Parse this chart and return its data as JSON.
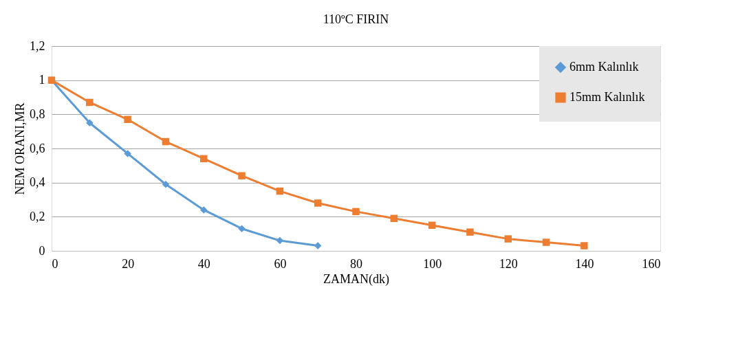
{
  "chart_data": {
    "type": "line",
    "title": "110ºC  FIRIN",
    "xlabel": "ZAMAN(dk)",
    "ylabel": "NEM ORANI,MR",
    "xlim": [
      0,
      160
    ],
    "xticks": [
      0,
      20,
      40,
      60,
      80,
      100,
      120,
      140,
      160
    ],
    "ylim": [
      0,
      1.2
    ],
    "yticks": [
      0,
      {
        "value": 0.2,
        "label": "0,2"
      },
      {
        "value": 0.4,
        "label": "0,4"
      },
      {
        "value": 0.6,
        "label": "0,6"
      },
      {
        "value": 0.8,
        "label": "0,8"
      },
      1,
      {
        "value": 1.2,
        "label": "1,2"
      }
    ],
    "grid": "y",
    "legend": "top right",
    "line_style": "solid",
    "series": [
      {
        "name": "6mm Kalınlık",
        "color": "#5b9bd5",
        "marker": "diamond",
        "x": [
          0,
          10,
          20,
          30,
          40,
          50,
          60,
          70
        ],
        "values": [
          1,
          0.75,
          0.57,
          0.39,
          0.24,
          0.13,
          0.06,
          0.03
        ]
      },
      {
        "name": "15mm Kalınlık",
        "color": "#ed7d31",
        "marker": "square",
        "x": [
          0,
          10,
          20,
          30,
          40,
          50,
          60,
          70,
          80,
          90,
          100,
          110,
          120,
          130,
          140
        ],
        "values": [
          1,
          0.87,
          0.77,
          0.64,
          0.54,
          0.44,
          0.35,
          0.28,
          0.23,
          0.19,
          0.15,
          0.11,
          0.07,
          0.05,
          0.03
        ]
      }
    ]
  }
}
